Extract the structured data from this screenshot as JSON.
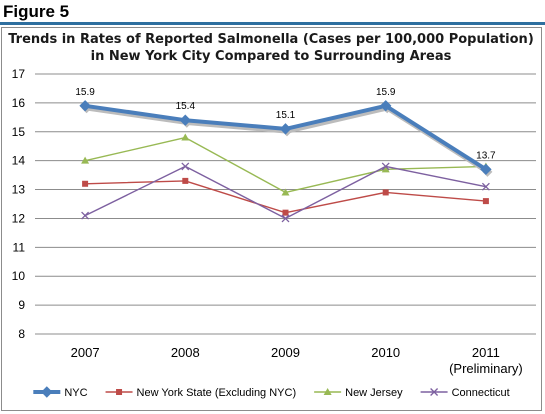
{
  "figure_label": "Figure 5",
  "chart_data": {
    "type": "line",
    "title_lines": [
      "Trends in Rates of Reported Salmonella (Cases per 100,000 Population)",
      "in New York City Compared to Surrounding Areas"
    ],
    "categories": [
      [
        "2007"
      ],
      [
        "2008"
      ],
      [
        "2009"
      ],
      [
        "2010"
      ],
      [
        "2011",
        "(Preliminary)"
      ]
    ],
    "ylim": [
      8,
      17
    ],
    "yticks": [
      8,
      9,
      10,
      11,
      12,
      13,
      14,
      15,
      16,
      17
    ],
    "grid": true,
    "legend_position": "bottom",
    "series": [
      {
        "name": "NYC",
        "values": [
          15.9,
          15.4,
          15.1,
          15.9,
          13.7
        ],
        "data_labels": [
          "15.9",
          "15.4",
          "15.1",
          "15.9",
          "13.7"
        ],
        "color": "#4a7ebb",
        "marker": "diamond",
        "thick": true
      },
      {
        "name": "New York State (Excluding NYC)",
        "values": [
          13.2,
          13.3,
          12.2,
          12.9,
          12.6
        ],
        "color": "#be4b48",
        "marker": "square"
      },
      {
        "name": "New Jersey",
        "values": [
          14.0,
          14.8,
          12.9,
          13.7,
          13.8
        ],
        "color": "#98b954",
        "marker": "triangle"
      },
      {
        "name": "Connecticut",
        "values": [
          12.1,
          13.8,
          12.0,
          13.8,
          13.1
        ],
        "color": "#7d60a0",
        "marker": "x"
      }
    ]
  }
}
